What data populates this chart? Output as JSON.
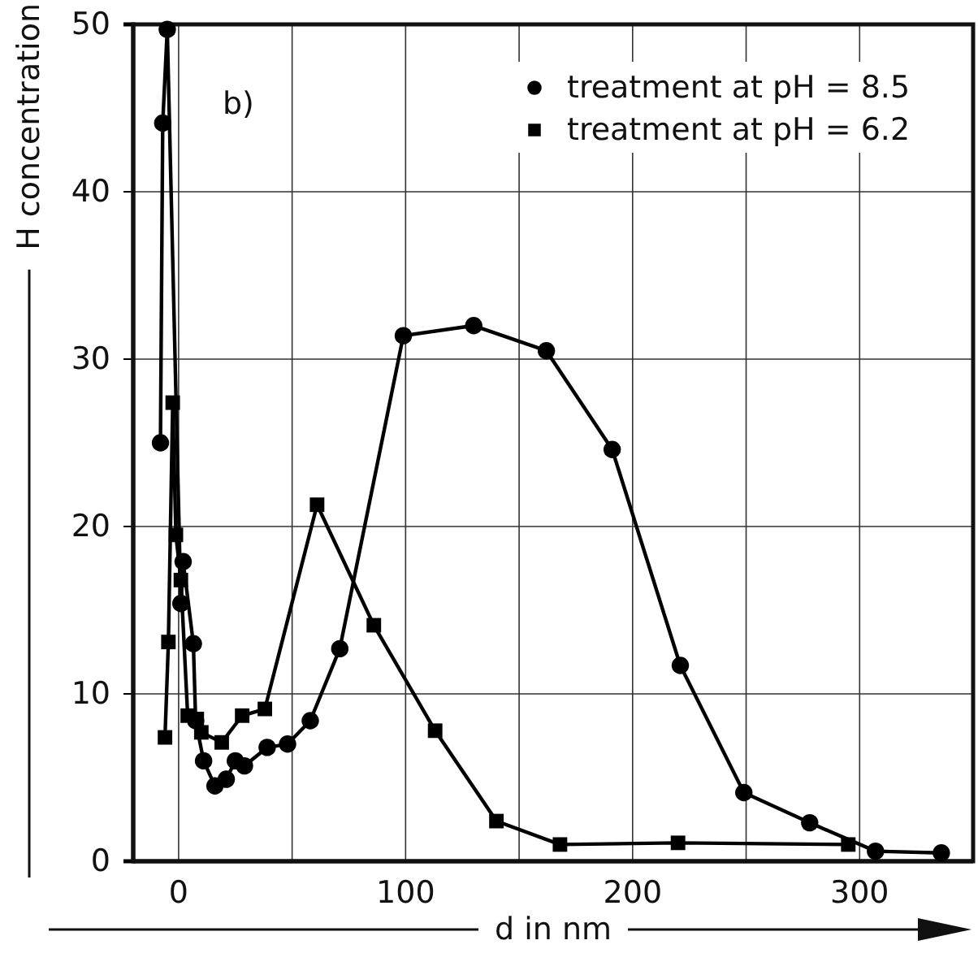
{
  "chart_data": {
    "type": "line",
    "xlabel": "d in nm",
    "ylabel": "H concentration",
    "annotations": [
      "b)"
    ],
    "xlim": [
      -20,
      350
    ],
    "xticks": [
      0,
      {
        "value": 50,
        "label": null
      },
      100,
      {
        "value": 150,
        "label": null
      },
      200,
      {
        "value": 250,
        "label": null
      },
      300
    ],
    "ylim": [
      0,
      50
    ],
    "yticks": [
      0,
      10,
      20,
      30,
      40,
      50
    ],
    "grid": true,
    "legend": "top right",
    "line_style": "solid",
    "series": [
      {
        "name": "treatment at pH = 8.5",
        "color": "#000000",
        "marker": "circle",
        "x": [
          -8,
          -7,
          -5,
          1,
          2,
          6.5,
          7.5,
          11,
          16,
          21,
          25,
          29,
          39,
          48,
          58,
          71,
          99,
          130,
          162,
          191,
          221,
          249,
          278,
          307,
          336
        ],
        "values": [
          25,
          44.1,
          49.7,
          15.4,
          17.9,
          13,
          8.4,
          6,
          4.5,
          4.9,
          6,
          5.7,
          6.8,
          7,
          8.4,
          12.7,
          31.4,
          32,
          30.5,
          24.6,
          11.7,
          4.1,
          2.3,
          0.6,
          0.5
        ]
      },
      {
        "name": "treatment at pH = 6.2",
        "color": "#000000",
        "marker": "square",
        "x": [
          -6,
          -4.5,
          -2.6,
          -1.2,
          1,
          4,
          8,
          10,
          19,
          28,
          38,
          61,
          86,
          113,
          140,
          168,
          220,
          295
        ],
        "values": [
          7.4,
          13.1,
          27.4,
          19.5,
          16.8,
          8.7,
          8.5,
          7.7,
          7.1,
          8.7,
          9.1,
          21.3,
          14.1,
          7.8,
          2.4,
          1,
          1.1,
          1
        ]
      }
    ]
  }
}
